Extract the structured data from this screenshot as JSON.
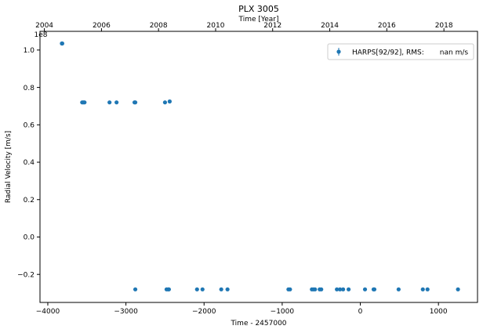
{
  "chart_data": {
    "type": "scatter",
    "title": "PLX 3005",
    "xlabel": "Time - 2457000",
    "ylabel": "Radial Velocity [m/s]",
    "top_xlabel": "Time [Year]",
    "y_multiplier": "1e8",
    "xlim": [
      -4100,
      1500
    ],
    "ylim": [
      -0.35,
      1.1
    ],
    "x_ticks": [
      -4000,
      -3000,
      -2000,
      -1000,
      0,
      1000
    ],
    "x_tick_labels": [
      "−4000",
      "−3000",
      "−2000",
      "−1000",
      "0",
      "1000"
    ],
    "y_ticks": [
      -0.2,
      0.0,
      0.2,
      0.4,
      0.6,
      0.8,
      1.0
    ],
    "y_tick_labels": [
      "−0.2",
      "0.0",
      "0.2",
      "0.4",
      "0.6",
      "0.8",
      "1.0"
    ],
    "top_ticks": [
      {
        "x": -4044,
        "label": "2004"
      },
      {
        "x": -3313,
        "label": "2006"
      },
      {
        "x": -2583,
        "label": "2008"
      },
      {
        "x": -1852,
        "label": "2010"
      },
      {
        "x": -1122,
        "label": "2012"
      },
      {
        "x": -391,
        "label": "2014"
      },
      {
        "x": 339,
        "label": "2016"
      },
      {
        "x": 1070,
        "label": "2018"
      }
    ],
    "legend": {
      "label": "HARPS[92/92], RMS:       nan m/s",
      "position": "top-right"
    },
    "series": [
      {
        "name": "HARPS",
        "color": "#1f77b4",
        "points": [
          [
            -3820,
            1.035
          ],
          [
            -3815,
            1.035
          ],
          [
            -3560,
            0.72
          ],
          [
            -3545,
            0.72
          ],
          [
            -3530,
            0.72
          ],
          [
            -3210,
            0.72
          ],
          [
            -3120,
            0.72
          ],
          [
            -2890,
            0.72
          ],
          [
            -2880,
            0.72
          ],
          [
            -2500,
            0.72
          ],
          [
            -2440,
            0.725
          ],
          [
            -2880,
            -0.28
          ],
          [
            -2480,
            -0.28
          ],
          [
            -2460,
            -0.28
          ],
          [
            -2450,
            -0.28
          ],
          [
            -2090,
            -0.28
          ],
          [
            -2020,
            -0.28
          ],
          [
            -1780,
            -0.28
          ],
          [
            -1700,
            -0.28
          ],
          [
            -920,
            -0.28
          ],
          [
            -900,
            -0.28
          ],
          [
            -620,
            -0.28
          ],
          [
            -600,
            -0.28
          ],
          [
            -580,
            -0.28
          ],
          [
            -520,
            -0.28
          ],
          [
            -500,
            -0.28
          ],
          [
            -300,
            -0.28
          ],
          [
            -260,
            -0.28
          ],
          [
            -220,
            -0.28
          ],
          [
            -150,
            -0.28
          ],
          [
            60,
            -0.28
          ],
          [
            170,
            -0.28
          ],
          [
            180,
            -0.28
          ],
          [
            490,
            -0.28
          ],
          [
            800,
            -0.28
          ],
          [
            860,
            -0.28
          ],
          [
            1250,
            -0.28
          ]
        ]
      }
    ]
  }
}
